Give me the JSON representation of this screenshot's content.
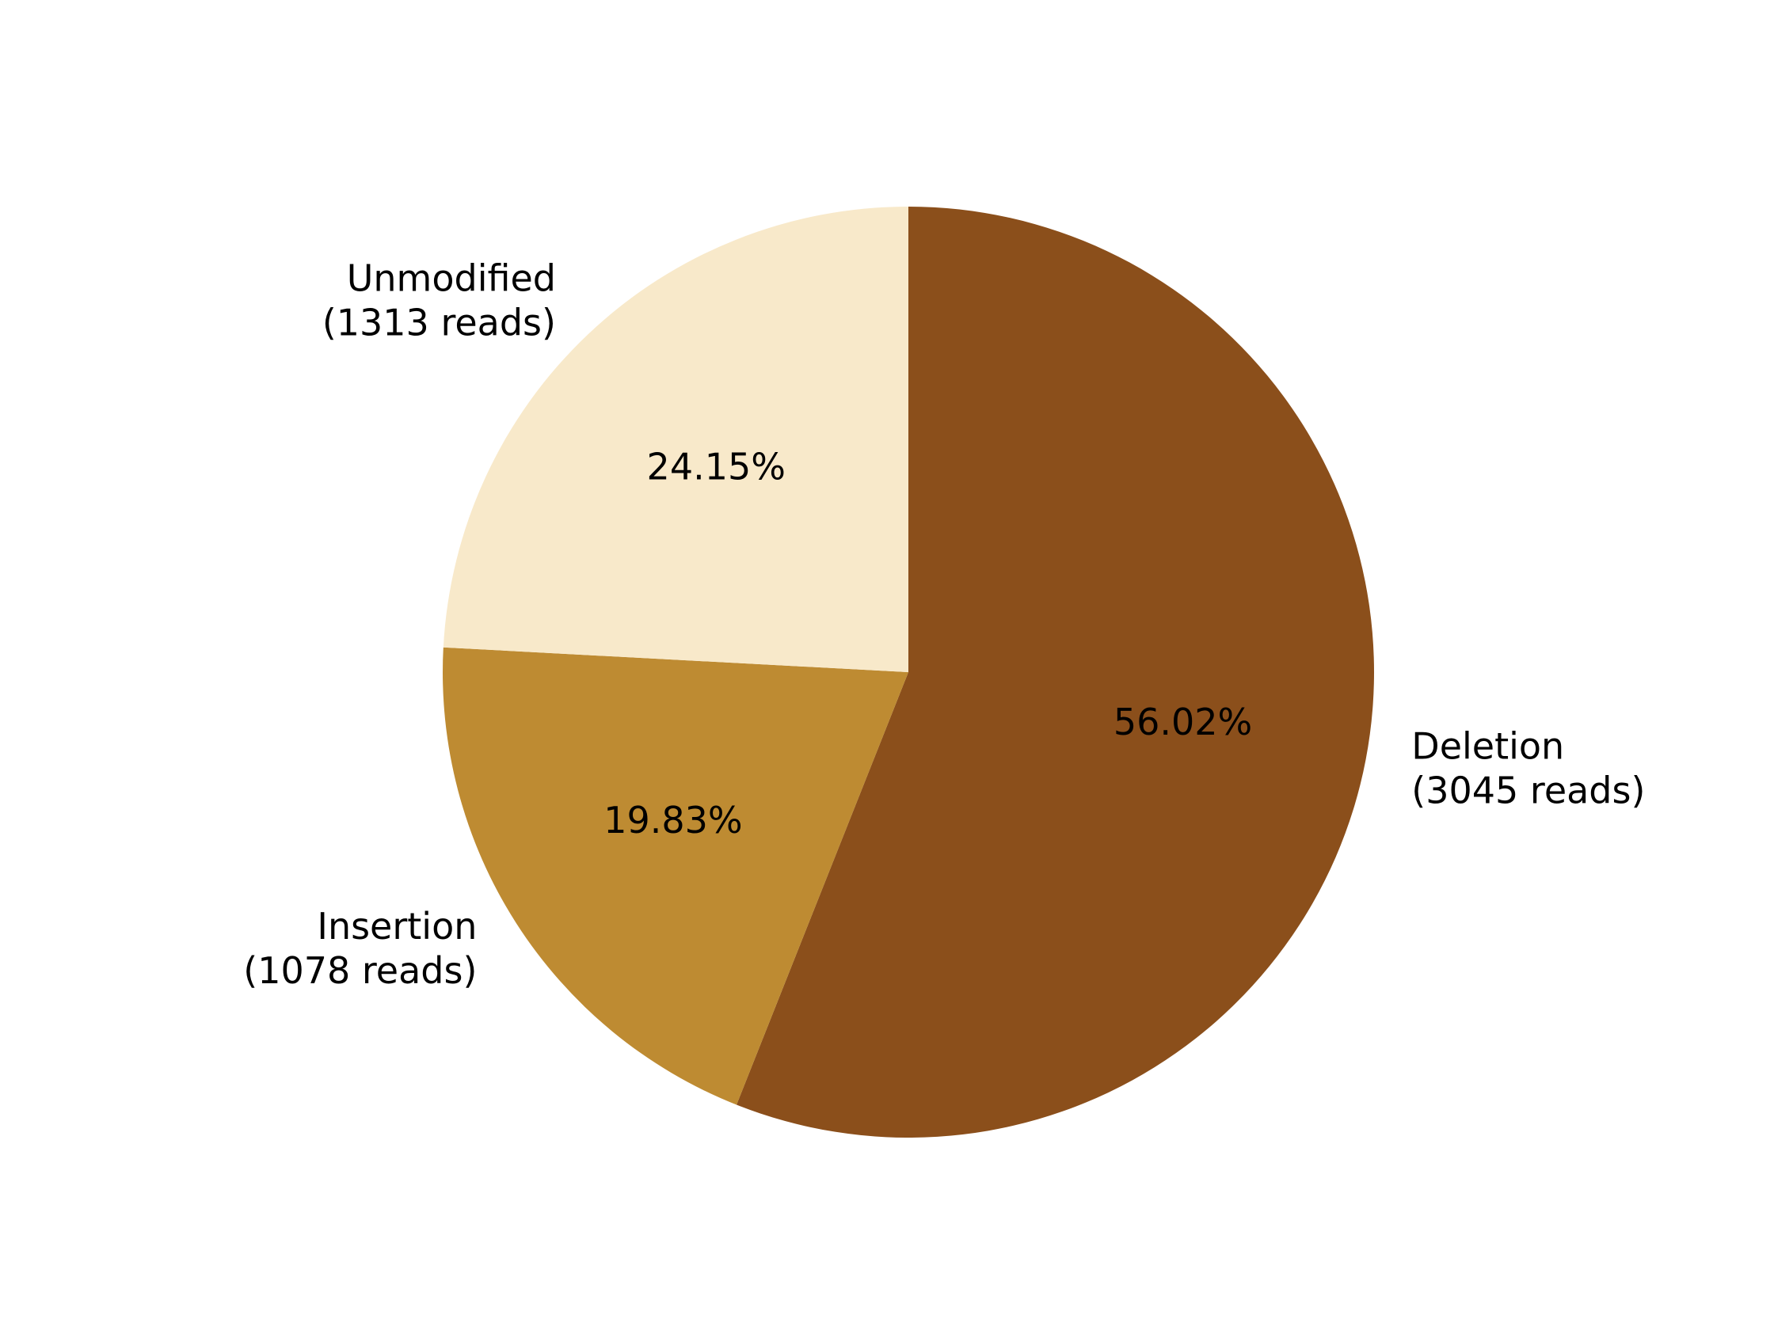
{
  "chart_data": {
    "type": "pie",
    "title": "",
    "start_angle": "top (12 o'clock)",
    "direction": "clockwise",
    "slices": [
      {
        "label": "Deletion",
        "count_text": "(3045 reads)",
        "reads": 3045,
        "percent": 56.02,
        "percent_text": "56.02%",
        "color": "#8B4F1B"
      },
      {
        "label": "Insertion",
        "count_text": "(1078 reads)",
        "reads": 1078,
        "percent": 19.83,
        "percent_text": "19.83%",
        "color": "#BE8B32"
      },
      {
        "label": "Unmodified",
        "count_text": "(1313 reads)",
        "reads": 1313,
        "percent": 24.15,
        "percent_text": "24.15%",
        "color": "#F8E9CA"
      }
    ]
  }
}
